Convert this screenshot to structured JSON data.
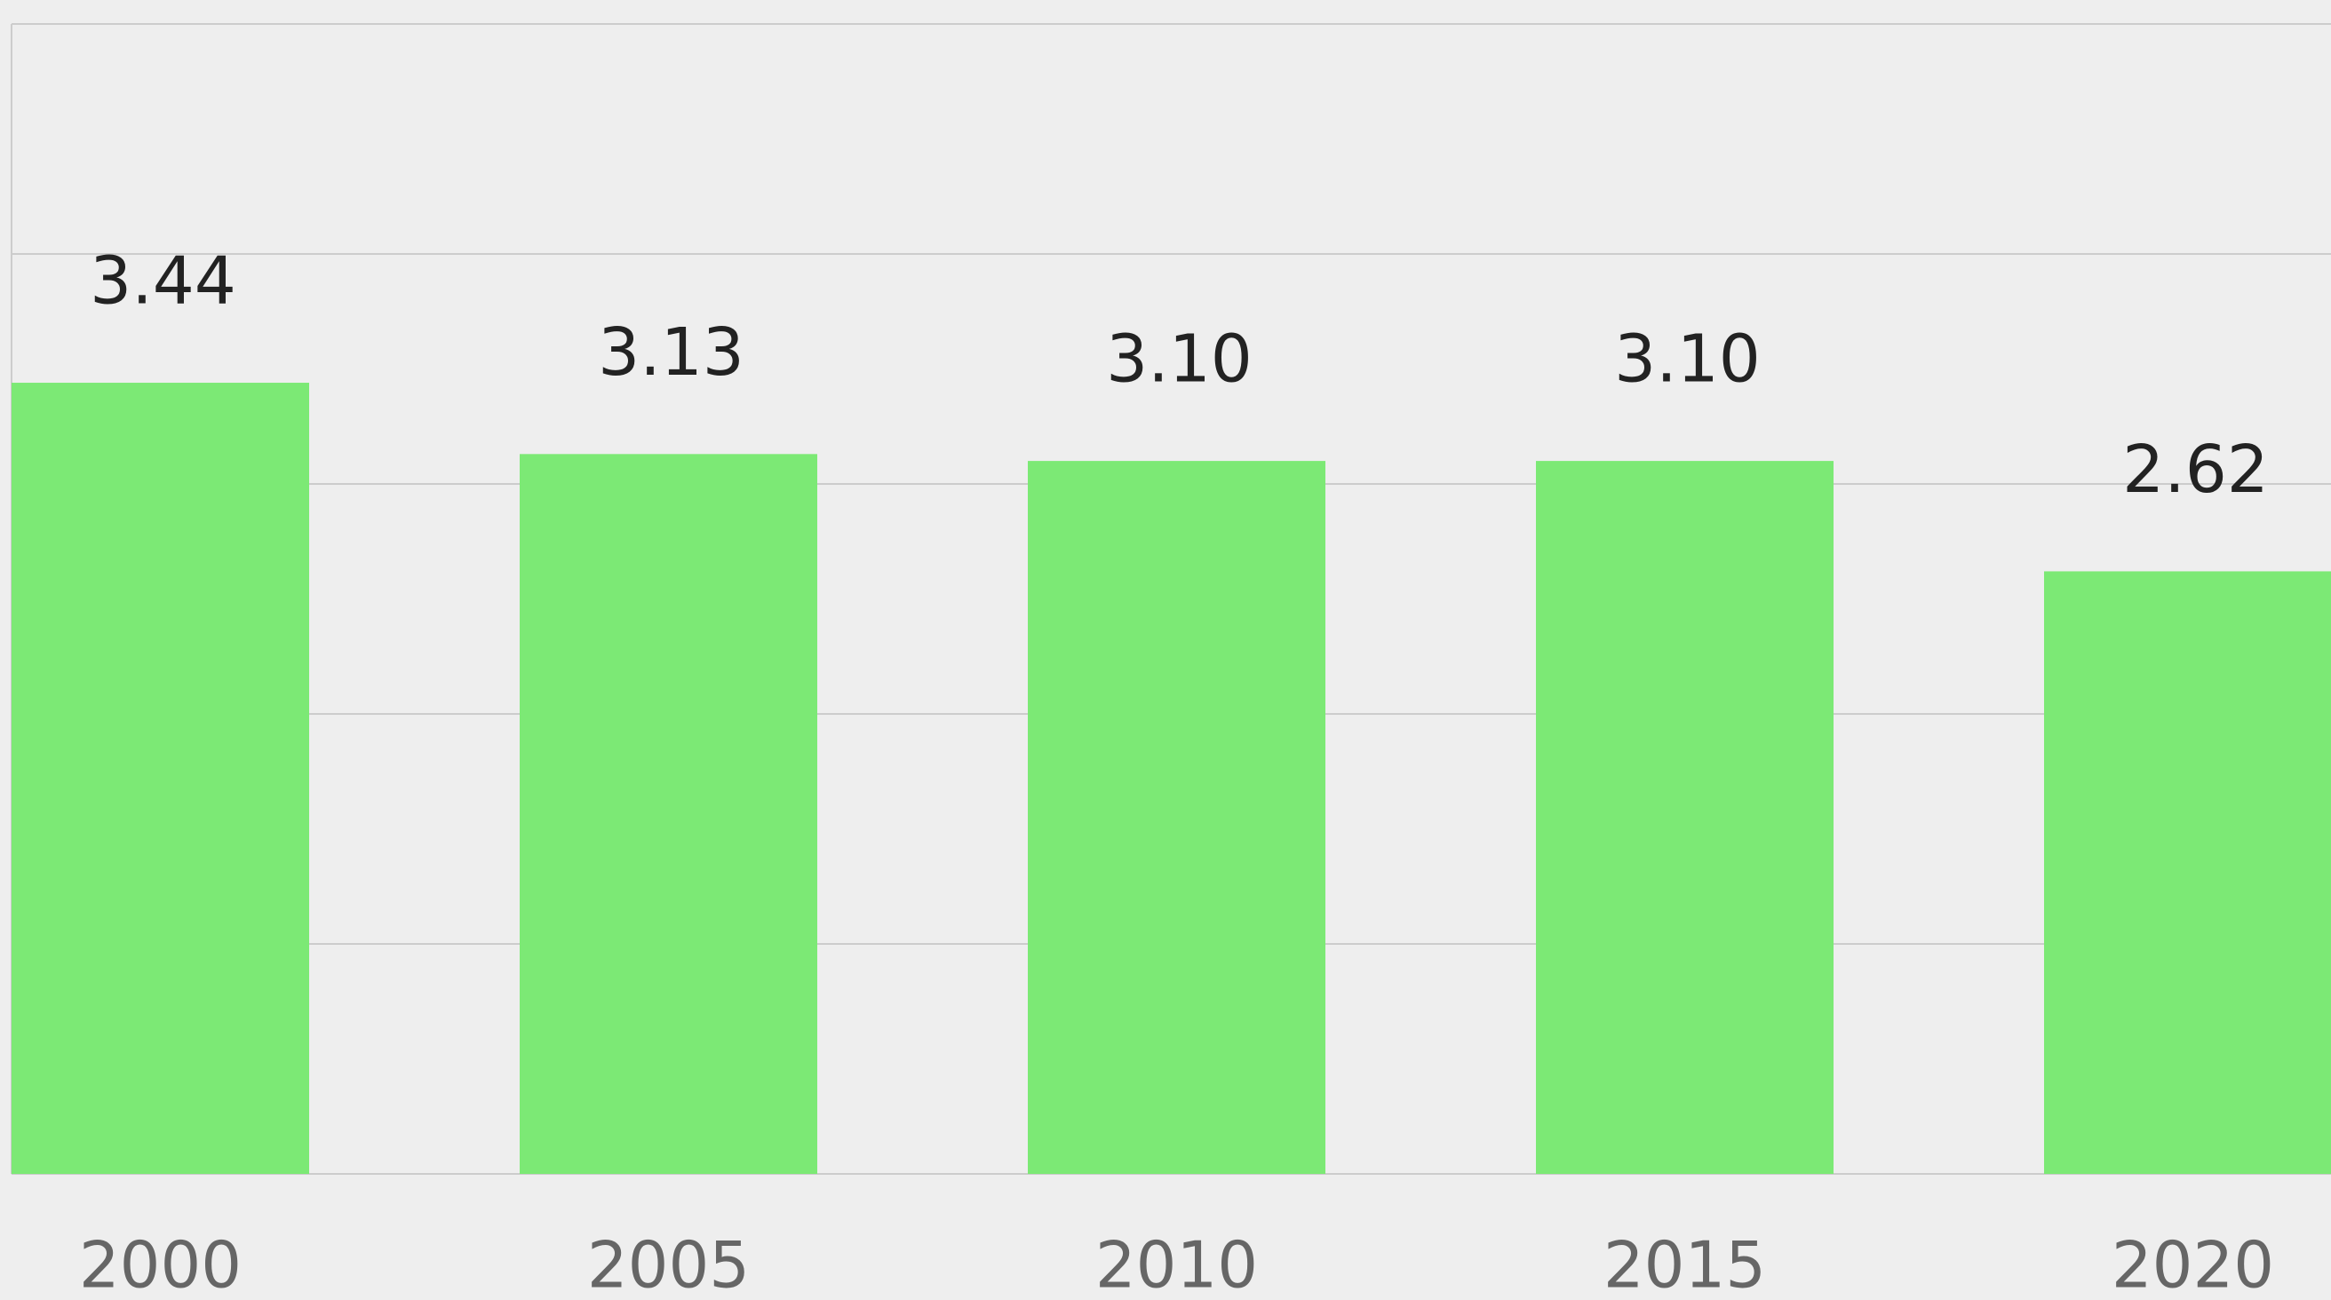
{
  "chart_data": {
    "type": "bar",
    "categories": [
      "2000",
      "2005",
      "2010",
      "2015",
      "2020"
    ],
    "values": [
      3.44,
      3.13,
      3.1,
      3.1,
      2.62
    ],
    "value_labels": [
      "3.44",
      "3.13",
      "3.10",
      "3.10",
      "2.62"
    ],
    "color": "#7ce975",
    "ylim": [
      0,
      5
    ],
    "yticks": [
      0,
      1,
      2,
      3,
      4,
      5
    ],
    "grid": true
  }
}
